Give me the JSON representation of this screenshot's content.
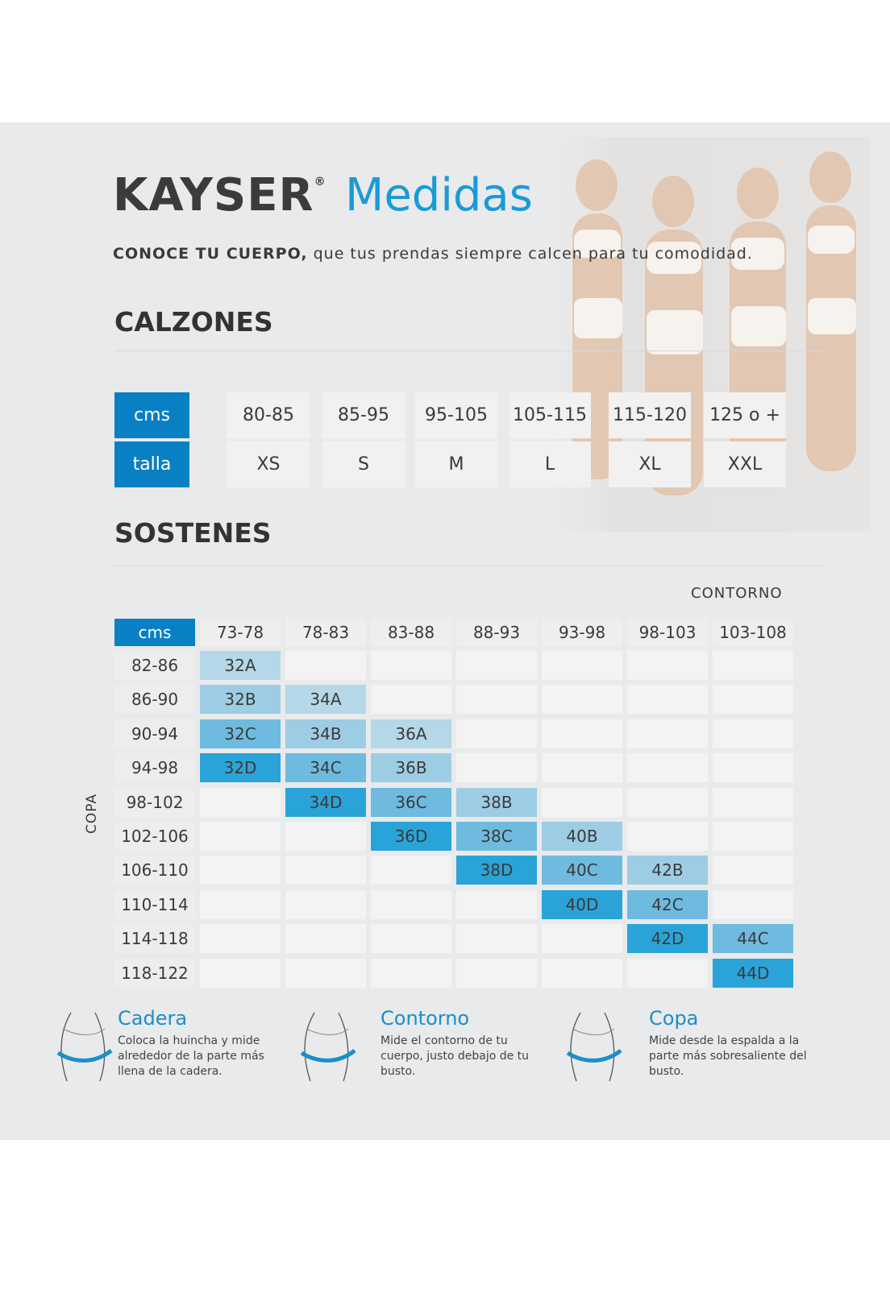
{
  "header": {
    "brand": "KAYSER",
    "registered": "®",
    "title": "Medidas",
    "tagline_bold": "CONOCE TU CUERPO,",
    "tagline_rest": " que tus prendas siempre calcen para tu comodidad."
  },
  "colors": {
    "blue": "#0a80c4",
    "accent_text": "#1a9ad8",
    "cup_A": "#b5d8e8",
    "cup_B": "#9dcde4",
    "cup_C": "#6ebbdf",
    "cup_D": "#2aa4d8"
  },
  "calzones": {
    "title": "CALZONES",
    "cms_label": "cms",
    "talla_label": "talla",
    "cms": [
      "80-85",
      "85-95",
      "95-105",
      "105-115",
      "115-120",
      "125 o +"
    ],
    "talla": [
      "XS",
      "S",
      "M",
      "L",
      "XL",
      "XXL"
    ]
  },
  "sostenes": {
    "title": "SOSTENES",
    "contorno_label": "CONTORNO",
    "copa_label": "COPA",
    "cms_label": "cms",
    "columns": [
      "73-78",
      "78-83",
      "83-88",
      "88-93",
      "93-98",
      "98-103",
      "103-108"
    ],
    "rows": [
      {
        "label": "82-86",
        "cells": [
          "32A",
          null,
          null,
          null,
          null,
          null,
          null
        ]
      },
      {
        "label": "86-90",
        "cells": [
          "32B",
          "34A",
          null,
          null,
          null,
          null,
          null
        ]
      },
      {
        "label": "90-94",
        "cells": [
          "32C",
          "34B",
          "36A",
          null,
          null,
          null,
          null
        ]
      },
      {
        "label": "94-98",
        "cells": [
          "32D",
          "34C",
          "36B",
          null,
          null,
          null,
          null
        ]
      },
      {
        "label": "98-102",
        "cells": [
          null,
          "34D",
          "36C",
          "38B",
          null,
          null,
          null
        ]
      },
      {
        "label": "102-106",
        "cells": [
          null,
          null,
          "36D",
          "38C",
          "40B",
          null,
          null
        ]
      },
      {
        "label": "106-110",
        "cells": [
          null,
          null,
          null,
          "38D",
          "40C",
          "42B",
          null
        ]
      },
      {
        "label": "110-114",
        "cells": [
          null,
          null,
          null,
          null,
          "40D",
          "42C",
          null
        ]
      },
      {
        "label": "114-118",
        "cells": [
          null,
          null,
          null,
          null,
          null,
          "42D",
          "44C"
        ]
      },
      {
        "label": "118-122",
        "cells": [
          null,
          null,
          null,
          null,
          null,
          null,
          "44D"
        ]
      }
    ]
  },
  "tips": [
    {
      "title": "Cadera",
      "text": "Coloca la huincha y mide alrededor de la parte más llena de la cadera.",
      "icon": "hip-measure-icon"
    },
    {
      "title": "Contorno",
      "text": "Mide el contorno de tu cuerpo, justo debajo de tu busto.",
      "icon": "underbust-measure-icon"
    },
    {
      "title": "Copa",
      "text": "Mide desde la espalda a la parte más sobresaliente del busto.",
      "icon": "bust-measure-icon"
    }
  ]
}
